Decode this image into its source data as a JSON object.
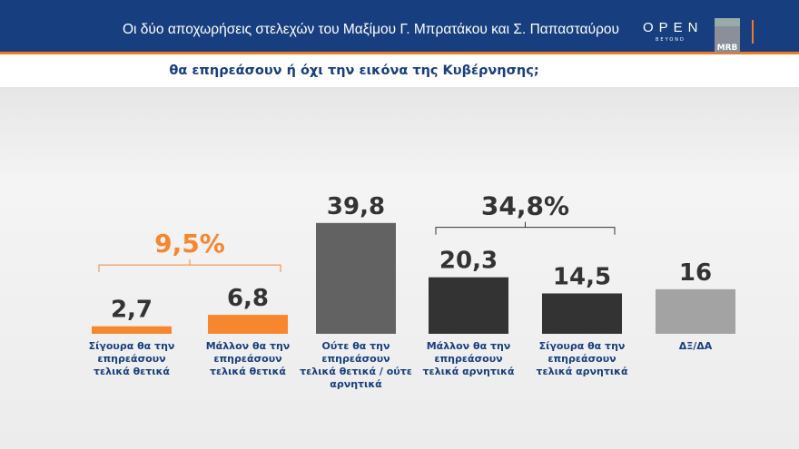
{
  "header": {
    "title": "Οι δύο αποχωρήσεις στελεχών του Μαξίμου Γ. Μπρατάκου και Σ. Παπασταύρου",
    "logo_open": "OPEN",
    "logo_beyond": "BEYOND",
    "logo_mrb": "MRB"
  },
  "subtitle": "θα επηρεάσουν ή όχι την εικόνα της Κυβέρνησης;",
  "chart_data": {
    "type": "bar",
    "categories": [
      [
        "Σίγουρα θα την",
        "επηρεάσουν",
        "τελικά θετικά"
      ],
      [
        "Μάλλον θα την",
        "επηρεάσουν",
        "τελικά θετικά"
      ],
      [
        "Ούτε θα την",
        "επηρεάσουν",
        "τελικά θετικά / ούτε",
        "αρνητικά"
      ],
      [
        "Μάλλον θα την",
        "επηρεάσουν",
        "τελικά αρνητικά"
      ],
      [
        "Σίγουρα θα την",
        "επηρεάσουν",
        "τελικά αρνητικά"
      ],
      [
        "ΔΞ/ΔΑ"
      ]
    ],
    "values": [
      2.7,
      6.8,
      39.8,
      20.3,
      14.5,
      16
    ],
    "labels": [
      "2,7",
      "6,8",
      "39,8",
      "20,3",
      "14,5",
      "16"
    ],
    "colors": [
      "#f7862f",
      "#f7862f",
      "#626262",
      "#333333",
      "#333333",
      "#a3a3a3"
    ],
    "groups": [
      {
        "label": "9,5%",
        "from": 0,
        "to": 1,
        "color": "#f7862f"
      },
      {
        "label": "34,8%",
        "from": 3,
        "to": 4,
        "color": "#333333"
      }
    ],
    "label_color": "#173e7e"
  }
}
